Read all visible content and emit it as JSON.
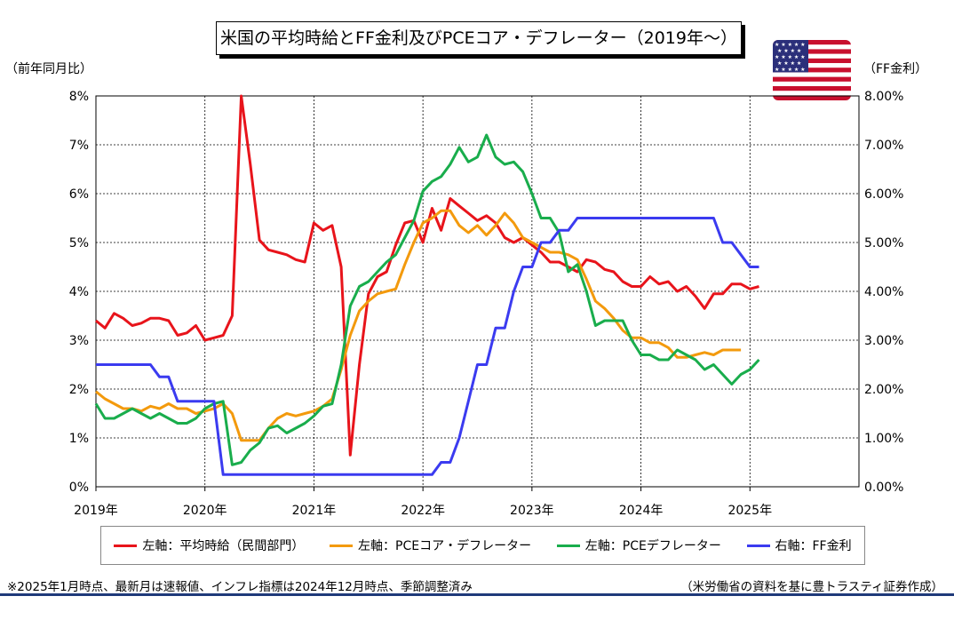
{
  "chart_data": {
    "type": "line",
    "title": "米国の平均時給とFF金利及びPCEコア・デフレーター（2019年～）",
    "left_axis_unit": "（前年同月比）",
    "right_axis_unit": "（FF金利）",
    "left_ylim": [
      0,
      8
    ],
    "right_ylim": [
      0,
      8
    ],
    "left_ticks": [
      "0%",
      "1%",
      "2%",
      "3%",
      "4%",
      "5%",
      "6%",
      "7%",
      "8%"
    ],
    "right_ticks": [
      "0.00%",
      "1.00%",
      "2.00%",
      "3.00%",
      "4.00%",
      "5.00%",
      "6.00%",
      "7.00%",
      "8.00%"
    ],
    "x_tick_labels": [
      "2019年",
      "2020年",
      "2021年",
      "2022年",
      "2023年",
      "2024年",
      "2025年"
    ],
    "x_range_months": [
      0,
      84
    ],
    "grid": true,
    "legend_position": "bottom",
    "series": [
      {
        "name": "左軸：平均時給（民間部門）",
        "color": "#e8141b",
        "axis": "left",
        "values": [
          3.4,
          3.25,
          3.55,
          3.45,
          3.3,
          3.35,
          3.45,
          3.45,
          3.4,
          3.1,
          3.15,
          3.3,
          3.0,
          3.05,
          3.1,
          3.5,
          8.0,
          6.6,
          5.05,
          4.85,
          4.8,
          4.75,
          4.65,
          4.6,
          5.4,
          5.25,
          5.35,
          4.5,
          0.65,
          2.5,
          3.95,
          4.3,
          4.4,
          4.95,
          5.4,
          5.45,
          5.0,
          5.7,
          5.25,
          5.9,
          5.75,
          5.6,
          5.45,
          5.55,
          5.4,
          5.1,
          5.0,
          5.1,
          4.95,
          4.8,
          4.6,
          4.6,
          4.5,
          4.4,
          4.65,
          4.6,
          4.45,
          4.4,
          4.2,
          4.1,
          4.1,
          4.3,
          4.15,
          4.2,
          4.0,
          4.1,
          3.9,
          3.65,
          3.95,
          3.95,
          4.15,
          4.15,
          4.05,
          4.1
        ]
      },
      {
        "name": "左軸：PCEコア・デフレーター",
        "color": "#f39a0d",
        "axis": "left",
        "values": [
          1.95,
          1.8,
          1.7,
          1.6,
          1.6,
          1.55,
          1.65,
          1.6,
          1.7,
          1.6,
          1.6,
          1.5,
          1.55,
          1.6,
          1.7,
          1.5,
          0.95,
          0.95,
          0.95,
          1.2,
          1.4,
          1.5,
          1.45,
          1.5,
          1.55,
          1.65,
          1.8,
          2.4,
          3.1,
          3.6,
          3.8,
          3.95,
          4.0,
          4.05,
          4.55,
          5.0,
          5.4,
          5.5,
          5.65,
          5.65,
          5.35,
          5.2,
          5.35,
          5.15,
          5.35,
          5.6,
          5.4,
          5.1,
          5.0,
          4.9,
          4.8,
          4.8,
          4.75,
          4.65,
          4.25,
          3.8,
          3.65,
          3.45,
          3.2,
          3.05,
          3.05,
          2.95,
          2.95,
          2.85,
          2.65,
          2.65,
          2.7,
          2.75,
          2.7,
          2.8,
          2.8,
          2.8
        ]
      },
      {
        "name": "左軸：PCEデフレーター",
        "color": "#19ad4c",
        "axis": "left",
        "values": [
          1.7,
          1.4,
          1.4,
          1.5,
          1.6,
          1.5,
          1.4,
          1.5,
          1.4,
          1.3,
          1.3,
          1.4,
          1.6,
          1.7,
          1.75,
          0.45,
          0.5,
          0.75,
          0.9,
          1.2,
          1.25,
          1.1,
          1.2,
          1.3,
          1.45,
          1.65,
          1.7,
          2.5,
          3.7,
          4.1,
          4.2,
          4.4,
          4.6,
          4.75,
          5.1,
          5.45,
          6.05,
          6.25,
          6.35,
          6.6,
          6.95,
          6.65,
          6.75,
          7.2,
          6.75,
          6.6,
          6.65,
          6.45,
          6.0,
          5.5,
          5.5,
          5.2,
          4.4,
          4.55,
          4.0,
          3.3,
          3.4,
          3.4,
          3.4,
          3.0,
          2.7,
          2.7,
          2.6,
          2.6,
          2.8,
          2.7,
          2.6,
          2.4,
          2.5,
          2.3,
          2.1,
          2.3,
          2.4,
          2.6
        ]
      },
      {
        "name": "右軸：FF金利",
        "color": "#3b3bf0",
        "axis": "right",
        "values": [
          2.5,
          2.5,
          2.5,
          2.5,
          2.5,
          2.5,
          2.5,
          2.25,
          2.25,
          1.75,
          1.75,
          1.75,
          1.75,
          1.75,
          0.25,
          0.25,
          0.25,
          0.25,
          0.25,
          0.25,
          0.25,
          0.25,
          0.25,
          0.25,
          0.25,
          0.25,
          0.25,
          0.25,
          0.25,
          0.25,
          0.25,
          0.25,
          0.25,
          0.25,
          0.25,
          0.25,
          0.25,
          0.25,
          0.5,
          0.5,
          1.0,
          1.75,
          2.5,
          2.5,
          3.25,
          3.25,
          4.0,
          4.5,
          4.5,
          5.0,
          5.0,
          5.25,
          5.25,
          5.5,
          5.5,
          5.5,
          5.5,
          5.5,
          5.5,
          5.5,
          5.5,
          5.5,
          5.5,
          5.5,
          5.5,
          5.5,
          5.5,
          5.5,
          5.5,
          5.0,
          5.0,
          4.75,
          4.5,
          4.5
        ]
      }
    ]
  },
  "footnote": "※2025年1月時点、最新月は速報値、インフレ指標は2024年12月時点、季節調整済み",
  "source": "（米労働省の資料を基に豊トラスティ証券作成）"
}
